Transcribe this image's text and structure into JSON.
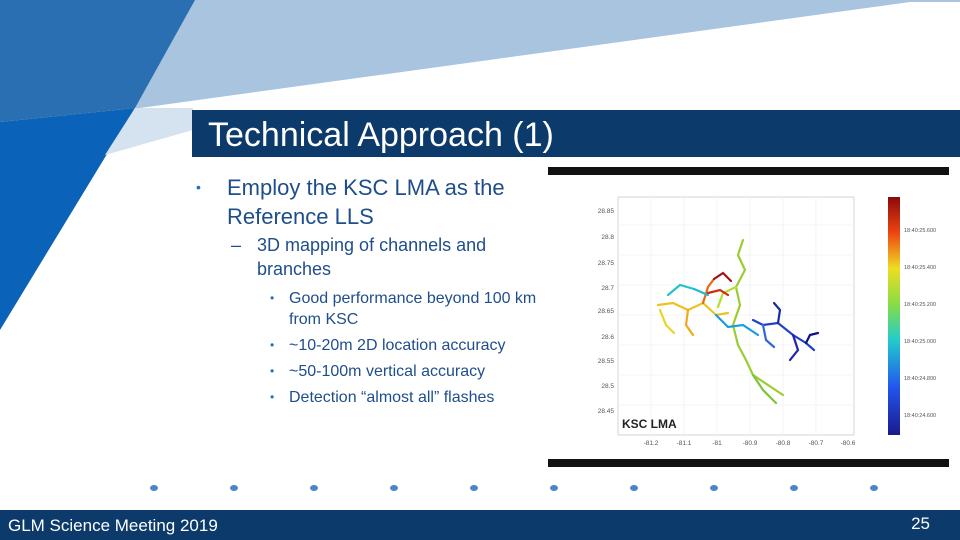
{
  "slide": {
    "title": "Technical Approach (1)",
    "bullet1": "Employ the KSC LMA as the Reference LLS",
    "bullet2": "3D mapping of channels and branches",
    "sub_bullets": [
      "Good performance beyond 100 km from KSC",
      "~10-20m 2D location accuracy",
      "~50-100m vertical accuracy",
      "Detection “almost all” flashes"
    ],
    "footer_left": "GLM Science Meeting 2019",
    "page_number": "25"
  },
  "figure": {
    "label": "KSC LMA",
    "y_ticks": [
      "28.85",
      "28.8",
      "28.75",
      "28.7",
      "28.65",
      "28.6",
      "28.55",
      "28.5",
      "28.45"
    ],
    "x_ticks": [
      "-81.2",
      "-81.1",
      "-81",
      "-80.9",
      "-80.8",
      "-80.7",
      "-80.6"
    ],
    "colorbar_ticks": [
      "18:40:25.600",
      "18:40:25.400",
      "18:40:25.200",
      "18:40:25.000",
      "18:40:24.800",
      "18:40:24.600"
    ]
  },
  "colors": {
    "title_bar": "#0b3a6b",
    "footer": "#0b3a6b",
    "text": "#1f4e8c",
    "accent_light": "#a9c4df",
    "accent_dark": "#1f6fc0"
  }
}
